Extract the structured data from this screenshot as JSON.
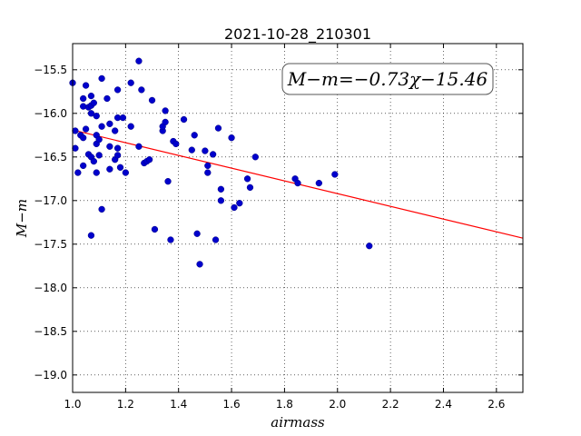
{
  "chart_data": {
    "type": "scatter",
    "title": "2021-10-28_210301",
    "xlabel": "airmass",
    "ylabel": "M−m",
    "xlim": [
      1.0,
      2.7
    ],
    "ylim": [
      -19.2,
      -15.2
    ],
    "y_inverted": true,
    "grid": true,
    "x_ticks": [
      "1.0",
      "1.2",
      "1.4",
      "1.6",
      "1.8",
      "2.0",
      "2.2",
      "2.4",
      "2.6"
    ],
    "y_ticks": [
      "−15.5",
      "−16.0",
      "−16.5",
      "−17.0",
      "−17.5",
      "−18.0",
      "−18.5",
      "−19.0"
    ],
    "annotation": "M−m=−0.73χ−15.46",
    "fit_line": {
      "slope": -0.73,
      "intercept": -15.46,
      "color": "#ff0000"
    },
    "point_color": "#0000cc",
    "points": [
      [
        1.0,
        -15.65
      ],
      [
        1.01,
        -16.4
      ],
      [
        1.01,
        -16.2
      ],
      [
        1.02,
        -16.68
      ],
      [
        1.03,
        -16.25
      ],
      [
        1.04,
        -16.6
      ],
      [
        1.04,
        -16.28
      ],
      [
        1.04,
        -15.83
      ],
      [
        1.04,
        -15.92
      ],
      [
        1.05,
        -16.18
      ],
      [
        1.05,
        -15.68
      ],
      [
        1.06,
        -16.47
      ],
      [
        1.06,
        -15.93
      ],
      [
        1.07,
        -16.5
      ],
      [
        1.07,
        -15.91
      ],
      [
        1.07,
        -15.8
      ],
      [
        1.07,
        -16.0
      ],
      [
        1.07,
        -17.4
      ],
      [
        1.08,
        -16.55
      ],
      [
        1.08,
        -15.88
      ],
      [
        1.09,
        -16.35
      ],
      [
        1.09,
        -16.68
      ],
      [
        1.09,
        -16.03
      ],
      [
        1.09,
        -16.25
      ],
      [
        1.1,
        -16.3
      ],
      [
        1.1,
        -16.48
      ],
      [
        1.11,
        -15.6
      ],
      [
        1.11,
        -16.15
      ],
      [
        1.11,
        -17.1
      ],
      [
        1.13,
        -15.83
      ],
      [
        1.14,
        -16.12
      ],
      [
        1.14,
        -16.38
      ],
      [
        1.14,
        -16.64
      ],
      [
        1.16,
        -16.2
      ],
      [
        1.16,
        -16.53
      ],
      [
        1.17,
        -16.48
      ],
      [
        1.17,
        -16.4
      ],
      [
        1.17,
        -16.05
      ],
      [
        1.17,
        -15.73
      ],
      [
        1.18,
        -16.62
      ],
      [
        1.19,
        -16.05
      ],
      [
        1.2,
        -16.68
      ],
      [
        1.22,
        -15.65
      ],
      [
        1.22,
        -16.15
      ],
      [
        1.25,
        -15.4
      ],
      [
        1.25,
        -16.38
      ],
      [
        1.26,
        -15.73
      ],
      [
        1.27,
        -16.57
      ],
      [
        1.28,
        -16.55
      ],
      [
        1.29,
        -16.53
      ],
      [
        1.3,
        -15.85
      ],
      [
        1.31,
        -17.33
      ],
      [
        1.34,
        -16.2
      ],
      [
        1.34,
        -16.15
      ],
      [
        1.35,
        -16.1
      ],
      [
        1.35,
        -15.97
      ],
      [
        1.36,
        -16.78
      ],
      [
        1.37,
        -17.45
      ],
      [
        1.38,
        -16.32
      ],
      [
        1.39,
        -16.35
      ],
      [
        1.42,
        -16.07
      ],
      [
        1.45,
        -16.42
      ],
      [
        1.46,
        -16.25
      ],
      [
        1.47,
        -17.38
      ],
      [
        1.48,
        -17.73
      ],
      [
        1.5,
        -16.43
      ],
      [
        1.51,
        -16.6
      ],
      [
        1.51,
        -16.68
      ],
      [
        1.53,
        -16.47
      ],
      [
        1.54,
        -17.45
      ],
      [
        1.55,
        -16.17
      ],
      [
        1.56,
        -17.0
      ],
      [
        1.56,
        -16.87
      ],
      [
        1.6,
        -16.28
      ],
      [
        1.61,
        -17.08
      ],
      [
        1.63,
        -17.03
      ],
      [
        1.66,
        -16.75
      ],
      [
        1.67,
        -16.85
      ],
      [
        1.69,
        -16.5
      ],
      [
        1.84,
        -16.75
      ],
      [
        1.85,
        -16.8
      ],
      [
        1.93,
        -16.8
      ],
      [
        1.99,
        -16.7
      ],
      [
        2.12,
        -17.52
      ]
    ]
  }
}
